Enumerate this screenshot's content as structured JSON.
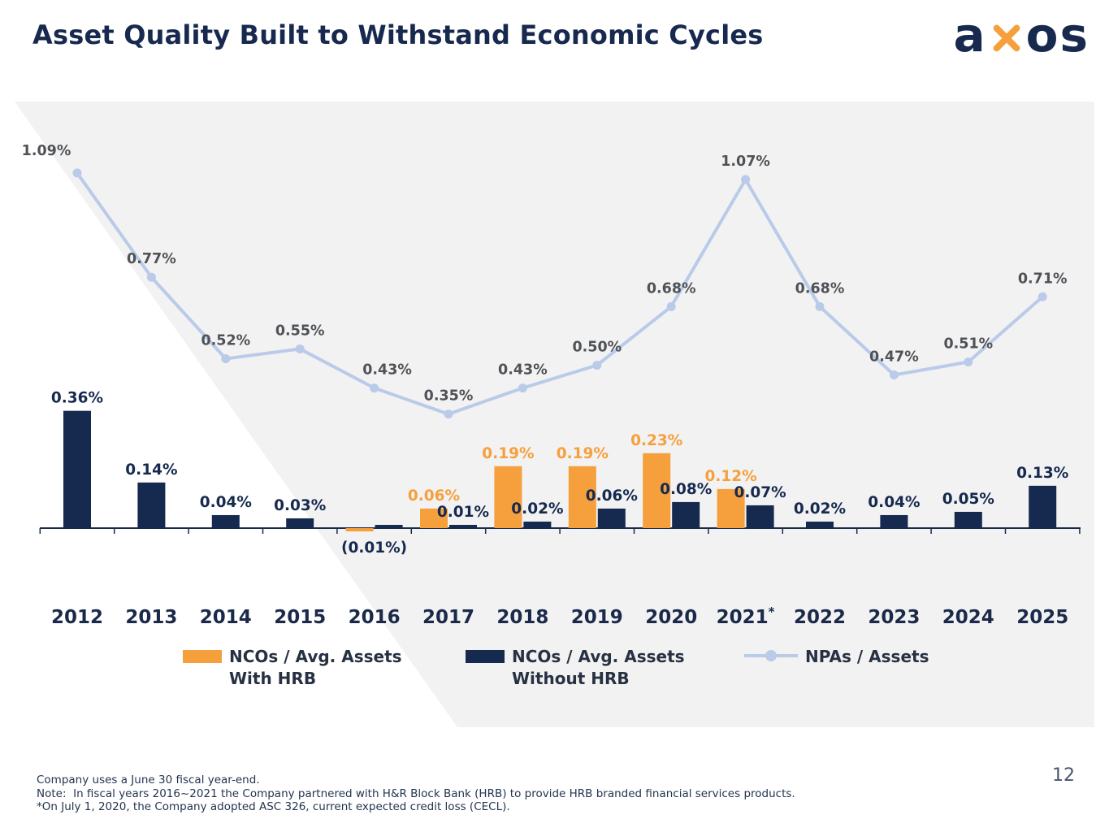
{
  "page": {
    "title": "Asset Quality Built to Withstand Economic Cycles",
    "page_number": "12"
  },
  "logo": {
    "left": "a",
    "right": "os",
    "name": "axos"
  },
  "colors": {
    "navy": "#16294F",
    "orange": "#F5A03D",
    "line": "#B9CBE8",
    "line_label": "#4F5257",
    "axis": "#1B2A4A",
    "background_panel": "#F2F2F2",
    "title": "#17294E"
  },
  "chart_data": {
    "type": "combo",
    "title": "Asset Quality Built to Withstand Economic Cycles",
    "value_format": "percent",
    "grid": false,
    "legend_position": "bottom",
    "ylim": [
      -0.05,
      1.2
    ],
    "categories": [
      "2012",
      "2013",
      "2014",
      "2015",
      "2016",
      "2017",
      "2018",
      "2019",
      "2020",
      "2021",
      "2022",
      "2023",
      "2024",
      "2025"
    ],
    "footnote_marker_year": "2021",
    "series": [
      {
        "name": "NCOs / Avg. Assets With HRB",
        "type": "bar",
        "color": "#F5A03D",
        "values": [
          null,
          null,
          null,
          null,
          -0.01,
          0.06,
          0.19,
          0.19,
          0.23,
          0.12,
          null,
          null,
          null,
          null
        ],
        "labels": [
          "",
          "",
          "",
          "",
          "(0.01%)",
          "0.06%",
          "0.19%",
          "0.19%",
          "0.23%",
          "0.12%",
          "",
          "",
          "",
          ""
        ]
      },
      {
        "name": "NCOs / Avg. Assets Without HRB",
        "type": "bar",
        "color": "#16294F",
        "values": [
          0.36,
          0.14,
          0.04,
          0.03,
          0.01,
          0.01,
          0.02,
          0.06,
          0.08,
          0.07,
          0.02,
          0.04,
          0.05,
          0.13
        ],
        "labels": [
          "0.36%",
          "0.14%",
          "0.04%",
          "0.03%",
          "",
          "0.01%",
          "0.02%",
          "0.06%",
          "0.08%",
          "0.07%",
          "0.02%",
          "0.04%",
          "0.05%",
          "0.13%"
        ]
      },
      {
        "name": "NPAs / Assets",
        "type": "line",
        "color": "#B9CBE8",
        "values": [
          1.09,
          0.77,
          0.52,
          0.55,
          0.43,
          0.35,
          0.43,
          0.5,
          0.68,
          1.07,
          0.68,
          0.47,
          0.51,
          0.71
        ],
        "labels": [
          "1.09%",
          "0.77%",
          "0.52%",
          "0.55%",
          "0.43%",
          "0.35%",
          "0.43%",
          "0.50%",
          "0.68%",
          "1.07%",
          "0.68%",
          "0.47%",
          "0.51%",
          "0.71%"
        ]
      }
    ]
  },
  "legend": [
    {
      "swatch": "bar",
      "color": "#F5A03D",
      "line1": "NCOs / Avg. Assets",
      "line2": "With HRB"
    },
    {
      "swatch": "bar",
      "color": "#16294F",
      "line1": "NCOs / Avg. Assets",
      "line2": "Without HRB"
    },
    {
      "swatch": "line",
      "color": "#B9CBE8",
      "line1": "NPAs / Assets",
      "line2": ""
    }
  ],
  "footnotes": [
    "Company uses a June 30 fiscal year-end.",
    "Note:  In fiscal years 2016~2021 the Company partnered with H&R Block Bank (HRB) to provide HRB branded financial services products.",
    "*On July 1, 2020, the Company adopted ASC 326, current expected credit loss (CECL)."
  ]
}
